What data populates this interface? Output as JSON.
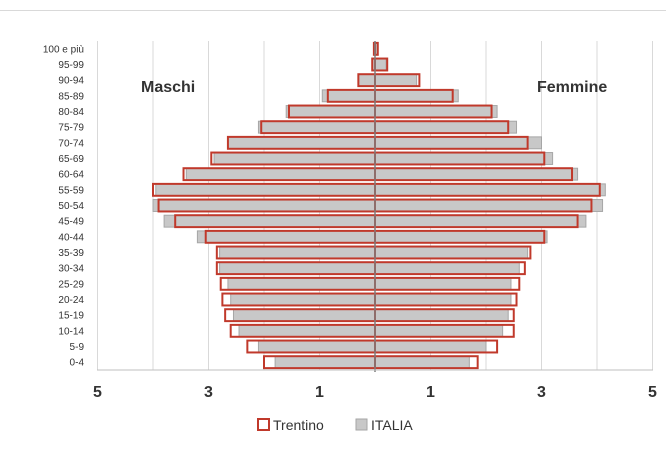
{
  "chart_data": {
    "type": "bar",
    "orientation": "horizontal-diverging",
    "categories": [
      "0-4",
      "5-9",
      "10-14",
      "15-19",
      "20-24",
      "25-29",
      "30-34",
      "35-39",
      "40-44",
      "45-49",
      "50-54",
      "55-59",
      "60-64",
      "65-69",
      "70-74",
      "75-79",
      "80-84",
      "85-89",
      "90-94",
      "95-99",
      "100 e più"
    ],
    "series": [
      {
        "name": "Trentino",
        "style": "outline",
        "color": "#c0392b",
        "left_values": [
          2.0,
          2.3,
          2.6,
          2.7,
          2.75,
          2.78,
          2.85,
          2.85,
          3.05,
          3.6,
          3.9,
          4.0,
          3.45,
          2.95,
          2.65,
          2.05,
          1.55,
          0.85,
          0.3,
          0.05,
          0.02
        ],
        "right_values": [
          1.85,
          2.2,
          2.5,
          2.5,
          2.55,
          2.6,
          2.7,
          2.8,
          3.05,
          3.65,
          3.9,
          4.05,
          3.55,
          3.05,
          2.75,
          2.4,
          2.1,
          1.4,
          0.8,
          0.22,
          0.05
        ]
      },
      {
        "name": "ITALIA",
        "style": "fill",
        "color": "#c8c8c8",
        "left_values": [
          1.8,
          2.1,
          2.45,
          2.55,
          2.6,
          2.65,
          2.8,
          2.8,
          3.2,
          3.8,
          4.0,
          3.95,
          3.4,
          2.9,
          2.65,
          2.1,
          1.6,
          0.95,
          0.3,
          0.05,
          0.02
        ],
        "right_values": [
          1.7,
          2.0,
          2.3,
          2.4,
          2.45,
          2.45,
          2.6,
          2.75,
          3.1,
          3.8,
          4.1,
          4.15,
          3.65,
          3.2,
          3.0,
          2.55,
          2.2,
          1.5,
          0.75,
          0.2,
          0.04
        ]
      }
    ],
    "x_ticks": [
      "5",
      "3",
      "1",
      "1",
      "3",
      "5"
    ],
    "xlim": [
      -5,
      5
    ],
    "annotations": {
      "left": "Maschi",
      "right": "Femmine"
    },
    "legend": {
      "placement": "bottom",
      "entries": [
        "Trentino",
        "ITALIA"
      ]
    },
    "grid": "vertical"
  }
}
